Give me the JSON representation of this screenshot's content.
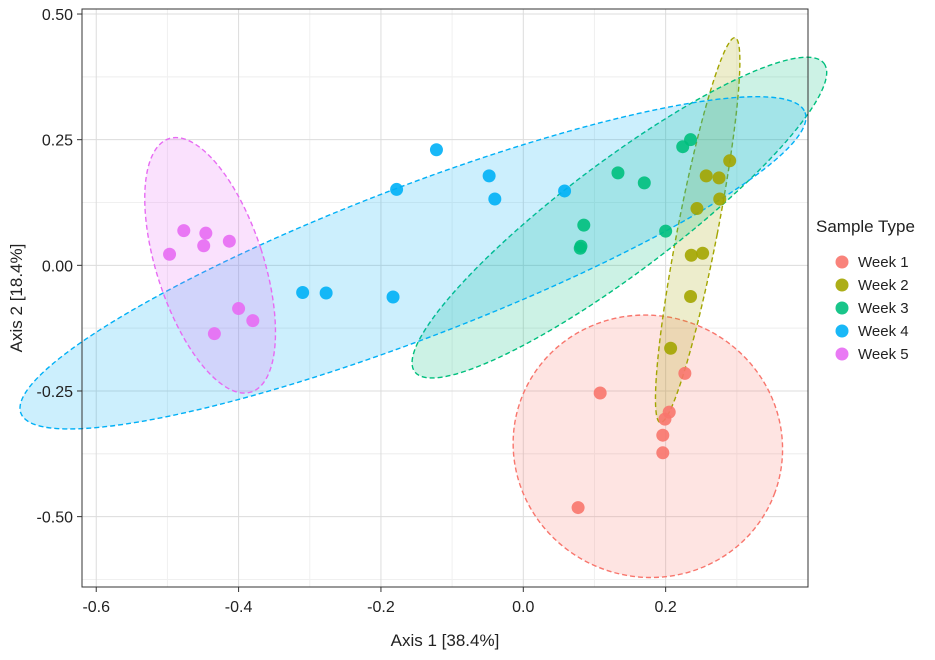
{
  "chart_data": {
    "type": "scatter",
    "title": "",
    "xlabel": "Axis 1 [38.4%]",
    "ylabel": "Axis 2 [18.4%]",
    "xlim": [
      -0.62,
      0.4
    ],
    "ylim": [
      -0.64,
      0.51
    ],
    "grid": true,
    "legend_title": "Sample Type",
    "legend_position": "right",
    "x_ticks": [
      {
        "value": -0.6,
        "label": "-0.6"
      },
      {
        "value": -0.4,
        "label": "-0.4"
      },
      {
        "value": -0.2,
        "label": "-0.2"
      },
      {
        "value": 0.0,
        "label": "0.0"
      },
      {
        "value": 0.2,
        "label": "0.2"
      }
    ],
    "y_ticks": [
      {
        "value": -0.5,
        "label": "-0.50"
      },
      {
        "value": -0.25,
        "label": "-0.25"
      },
      {
        "value": 0.0,
        "label": "0.00"
      },
      {
        "value": 0.25,
        "label": "0.25"
      },
      {
        "value": 0.5,
        "label": "0.50"
      }
    ],
    "series": [
      {
        "name": "Week 1",
        "color": "#F8766D",
        "ellipse": {
          "cx": 0.175,
          "cy": -0.36,
          "rx": 0.19,
          "ry": 0.26,
          "rotation_deg": 20
        },
        "points": [
          {
            "x": 0.077,
            "y": -0.482
          },
          {
            "x": 0.108,
            "y": -0.254
          },
          {
            "x": 0.196,
            "y": -0.373
          },
          {
            "x": 0.196,
            "y": -0.338
          },
          {
            "x": 0.199,
            "y": -0.306
          },
          {
            "x": 0.205,
            "y": -0.292
          },
          {
            "x": 0.227,
            "y": -0.215
          }
        ]
      },
      {
        "name": "Week 2",
        "color": "#A3A500",
        "ellipse": {
          "cx": 0.245,
          "cy": 0.07,
          "rx": 0.028,
          "ry": 0.39,
          "rotation_deg": 11
        },
        "points": [
          {
            "x": 0.207,
            "y": -0.165
          },
          {
            "x": 0.235,
            "y": -0.062
          },
          {
            "x": 0.236,
            "y": 0.02
          },
          {
            "x": 0.252,
            "y": 0.024
          },
          {
            "x": 0.244,
            "y": 0.113
          },
          {
            "x": 0.276,
            "y": 0.132
          },
          {
            "x": 0.275,
            "y": 0.174
          },
          {
            "x": 0.257,
            "y": 0.178
          },
          {
            "x": 0.29,
            "y": 0.208
          }
        ]
      },
      {
        "name": "Week 3",
        "color": "#00BF7D",
        "ellipse": {
          "cx": 0.135,
          "cy": 0.095,
          "rx": 0.36,
          "ry": 0.11,
          "rotation_deg": -37
        },
        "points": [
          {
            "x": 0.08,
            "y": 0.034
          },
          {
            "x": 0.081,
            "y": 0.038
          },
          {
            "x": 0.085,
            "y": 0.08
          },
          {
            "x": 0.2,
            "y": 0.068
          },
          {
            "x": 0.133,
            "y": 0.184
          },
          {
            "x": 0.17,
            "y": 0.164
          },
          {
            "x": 0.224,
            "y": 0.236
          },
          {
            "x": 0.235,
            "y": 0.25
          }
        ]
      },
      {
        "name": "Week 4",
        "color": "#00B0F6",
        "ellipse": {
          "cx": -0.155,
          "cy": 0.005,
          "rx": 0.59,
          "ry": 0.15,
          "rotation_deg": -21
        },
        "points": [
          {
            "x": -0.31,
            "y": -0.054
          },
          {
            "x": -0.277,
            "y": -0.055
          },
          {
            "x": -0.183,
            "y": -0.063
          },
          {
            "x": -0.178,
            "y": 0.151
          },
          {
            "x": -0.122,
            "y": 0.23
          },
          {
            "x": -0.048,
            "y": 0.178
          },
          {
            "x": -0.04,
            "y": 0.132
          },
          {
            "x": 0.058,
            "y": 0.148
          }
        ]
      },
      {
        "name": "Week 5",
        "color": "#E76BF3",
        "ellipse": {
          "cx": -0.44,
          "cy": 0.0,
          "rx": 0.075,
          "ry": 0.265,
          "rotation_deg": -18
        },
        "points": [
          {
            "x": -0.497,
            "y": 0.022
          },
          {
            "x": -0.477,
            "y": 0.069
          },
          {
            "x": -0.446,
            "y": 0.064
          },
          {
            "x": -0.449,
            "y": 0.039
          },
          {
            "x": -0.413,
            "y": 0.048
          },
          {
            "x": -0.4,
            "y": -0.086
          },
          {
            "x": -0.434,
            "y": -0.136
          },
          {
            "x": -0.38,
            "y": -0.11
          }
        ]
      }
    ]
  }
}
